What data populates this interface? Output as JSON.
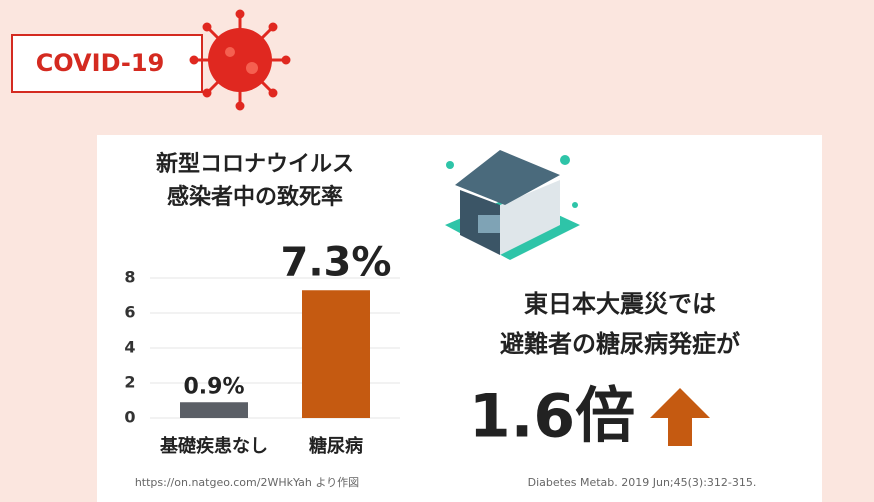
{
  "badge": "COVID-19",
  "chart_data": {
    "type": "bar",
    "title": [
      "新型コロナウイルス",
      "感染者中の致死率"
    ],
    "categories": [
      "基礎疾患なし",
      "糖尿病"
    ],
    "values": [
      0.9,
      7.3
    ],
    "value_labels": [
      "0.9%",
      "7.3%"
    ],
    "colors": [
      "#5b5f66",
      "#c55a11"
    ],
    "ylim": [
      0,
      8
    ],
    "yticks": [
      0,
      2,
      4,
      6,
      8
    ],
    "grid": true,
    "source": "https://on.natgeo.com/2WHkYah より作図"
  },
  "panel": {
    "lines": [
      "東日本大震災では",
      "避難者の糖尿病発症が"
    ],
    "highlight": "1.6倍",
    "citation": "Diabetes Metab. 2019 Jun;45(3):312-315."
  }
}
